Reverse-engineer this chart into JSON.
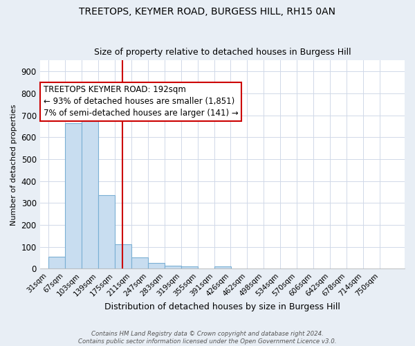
{
  "title": "TREETOPS, KEYMER ROAD, BURGESS HILL, RH15 0AN",
  "subtitle": "Size of property relative to detached houses in Burgess Hill",
  "xlabel": "Distribution of detached houses by size in Burgess Hill",
  "ylabel": "Number of detached properties",
  "bin_labels": [
    "31sqm",
    "67sqm",
    "103sqm",
    "139sqm",
    "175sqm",
    "211sqm",
    "247sqm",
    "283sqm",
    "319sqm",
    "355sqm",
    "391sqm",
    "426sqm",
    "462sqm",
    "498sqm",
    "534sqm",
    "570sqm",
    "606sqm",
    "642sqm",
    "678sqm",
    "714sqm",
    "750sqm"
  ],
  "bin_left_edges": [
    31,
    67,
    103,
    139,
    175,
    211,
    247,
    283,
    319,
    355,
    391,
    426,
    462,
    498,
    534,
    570,
    606,
    642,
    678,
    714,
    750
  ],
  "bin_width": 36,
  "bar_heights": [
    55,
    665,
    750,
    335,
    110,
    50,
    25,
    15,
    10,
    0,
    10,
    0,
    0,
    0,
    0,
    0,
    0,
    0,
    0,
    0,
    0
  ],
  "bar_color": "#c8ddf0",
  "bar_edge_color": "#7aafd4",
  "vline_x": 192,
  "vline_color": "#cc0000",
  "annotation_text": "TREETOPS KEYMER ROAD: 192sqm\n← 93% of detached houses are smaller (1,851)\n7% of semi-detached houses are larger (141) →",
  "annotation_box_facecolor": "#ffffff",
  "annotation_box_edgecolor": "#cc0000",
  "ylim": [
    0,
    950
  ],
  "yticks": [
    0,
    100,
    200,
    300,
    400,
    500,
    600,
    700,
    800,
    900
  ],
  "plot_bg_color": "#ffffff",
  "fig_bg_color": "#e8eef5",
  "footer_text": "Contains HM Land Registry data © Crown copyright and database right 2024.\nContains public sector information licensed under the Open Government Licence v3.0.",
  "title_fontsize": 10,
  "subtitle_fontsize": 9,
  "annotation_fontsize": 8.5,
  "xlabel_fontsize": 9,
  "ylabel_fontsize": 8
}
